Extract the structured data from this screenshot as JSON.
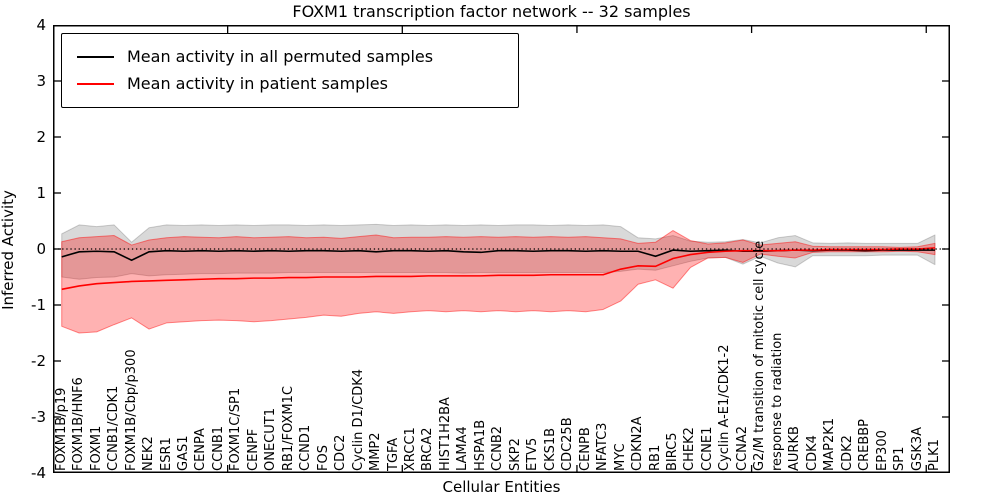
{
  "chart_data": {
    "type": "line",
    "title": "FOXM1 transcription factor network -- 32 samples",
    "xlabel": "Cellular Entities",
    "ylabel": "Inferred Activity",
    "ylim": [
      -4,
      4
    ],
    "yticks": [
      4,
      3,
      2,
      1,
      0,
      -1,
      -2,
      -3,
      -4
    ],
    "xticks": [
      10,
      20,
      30,
      40,
      50
    ],
    "grid": false,
    "zero_line_style": "dotted",
    "legend_position": "upper-left",
    "legend": [
      {
        "label": "Mean activity in all permuted samples",
        "color": "#000000"
      },
      {
        "label": "Mean activity in patient samples",
        "color": "#ff0000"
      }
    ],
    "categories": [
      "FOXM1B/p19",
      "FOXM1B/HNF6",
      "FOXM1",
      "CCNB1/CDK1",
      "FOXM1B/Cbp/p300",
      "NEK2",
      "ESR1",
      "GAS1",
      "CENPA",
      "CCNB1",
      "FOXM1C/SP1",
      "CENPF",
      "ONECUT1",
      "RB1/FOXM1C",
      "CCND1",
      "FOS",
      "CDC2",
      "Cyclin D1/CDK4",
      "MMP2",
      "TGFA",
      "XRCC1",
      "BRCA2",
      "HIST1H2BA",
      "LAMA4",
      "HSPA1B",
      "CCNB2",
      "SKP2",
      "ETV5",
      "CKS1B",
      "CDC25B",
      "CENPB",
      "NFATC3",
      "MYC",
      "CDKN2A",
      "RB1",
      "BIRC5",
      "CHEK2",
      "CCNE1",
      "Cyclin A-E1/CDK1-2",
      "CCNA2",
      "G2/M transition of mitotic cell cycle",
      "response to radiation",
      "AURKB",
      "CDK4",
      "MAP2K1",
      "CDK2",
      "CREBBP",
      "EP300",
      "SP1",
      "GSK3A",
      "PLK1"
    ],
    "series": [
      {
        "name_id": "permuted-mean",
        "name": "Mean activity in all permuted samples",
        "color": "#000000",
        "values": [
          -0.14,
          -0.05,
          -0.04,
          -0.05,
          -0.2,
          -0.05,
          -0.03,
          -0.04,
          -0.03,
          -0.04,
          -0.03,
          -0.04,
          -0.03,
          -0.04,
          -0.03,
          -0.03,
          -0.04,
          -0.03,
          -0.05,
          -0.03,
          -0.03,
          -0.04,
          -0.03,
          -0.05,
          -0.06,
          -0.03,
          -0.03,
          -0.04,
          -0.03,
          -0.03,
          -0.04,
          -0.03,
          -0.04,
          -0.04,
          -0.13,
          -0.02,
          -0.04,
          -0.03,
          -0.02,
          -0.04,
          -0.04,
          -0.03,
          -0.02,
          -0.03,
          -0.02,
          -0.02,
          -0.03,
          -0.02,
          -0.02,
          -0.02,
          -0.02
        ]
      },
      {
        "name_id": "patient-mean",
        "name": "Mean activity in patient samples",
        "color": "#ff0000",
        "values": [
          -0.72,
          -0.66,
          -0.62,
          -0.6,
          -0.58,
          -0.57,
          -0.56,
          -0.55,
          -0.54,
          -0.53,
          -0.53,
          -0.52,
          -0.52,
          -0.51,
          -0.51,
          -0.5,
          -0.5,
          -0.5,
          -0.49,
          -0.49,
          -0.49,
          -0.48,
          -0.48,
          -0.48,
          -0.48,
          -0.47,
          -0.47,
          -0.47,
          -0.46,
          -0.46,
          -0.46,
          -0.46,
          -0.36,
          -0.3,
          -0.31,
          -0.17,
          -0.1,
          -0.06,
          -0.04,
          -0.03,
          -0.03,
          -0.03,
          -0.02,
          -0.02,
          -0.01,
          -0.01,
          -0.01,
          -0.01,
          0.0,
          0.0,
          0.02
        ]
      }
    ],
    "bands": [
      {
        "name_id": "permuted-range",
        "fill": "rgba(0,0,0,0.15)",
        "edge": "rgba(0,0,0,0.18)",
        "upper": [
          0.27,
          0.43,
          0.4,
          0.43,
          0.12,
          0.38,
          0.43,
          0.42,
          0.43,
          0.42,
          0.43,
          0.42,
          0.43,
          0.43,
          0.42,
          0.43,
          0.42,
          0.43,
          0.44,
          0.42,
          0.43,
          0.42,
          0.43,
          0.42,
          0.43,
          0.42,
          0.43,
          0.43,
          0.42,
          0.43,
          0.42,
          0.43,
          0.4,
          0.2,
          0.18,
          0.24,
          0.14,
          0.12,
          0.13,
          0.17,
          0.11,
          0.2,
          0.24,
          0.11,
          0.1,
          0.11,
          0.1,
          0.1,
          0.1,
          0.1,
          0.25
        ],
        "lower": [
          -0.5,
          -0.54,
          -0.51,
          -0.5,
          -0.44,
          -0.48,
          -0.46,
          -0.45,
          -0.44,
          -0.44,
          -0.43,
          -0.43,
          -0.43,
          -0.42,
          -0.42,
          -0.42,
          -0.42,
          -0.42,
          -0.42,
          -0.42,
          -0.42,
          -0.42,
          -0.42,
          -0.43,
          -0.42,
          -0.42,
          -0.42,
          -0.42,
          -0.42,
          -0.42,
          -0.42,
          -0.42,
          -0.4,
          -0.36,
          -0.38,
          -0.3,
          -0.22,
          -0.16,
          -0.15,
          -0.27,
          -0.13,
          -0.25,
          -0.32,
          -0.12,
          -0.12,
          -0.12,
          -0.12,
          -0.11,
          -0.11,
          -0.11,
          -0.28
        ]
      },
      {
        "name_id": "patient-range",
        "fill": "rgba(255,0,0,0.30)",
        "edge": "rgba(255,0,0,0.45)",
        "upper": [
          0.13,
          0.2,
          0.22,
          0.24,
          0.07,
          0.16,
          0.2,
          0.22,
          0.21,
          0.2,
          0.22,
          0.2,
          0.21,
          0.22,
          0.2,
          0.21,
          0.19,
          0.22,
          0.25,
          0.2,
          0.21,
          0.21,
          0.22,
          0.21,
          0.22,
          0.21,
          0.22,
          0.21,
          0.22,
          0.21,
          0.22,
          0.2,
          0.18,
          0.1,
          0.12,
          0.33,
          0.15,
          0.09,
          0.11,
          0.16,
          0.07,
          0.1,
          0.13,
          0.05,
          0.04,
          0.04,
          0.04,
          0.04,
          0.03,
          0.04,
          0.1
        ],
        "lower": [
          -1.38,
          -1.5,
          -1.48,
          -1.35,
          -1.23,
          -1.43,
          -1.32,
          -1.3,
          -1.28,
          -1.27,
          -1.28,
          -1.3,
          -1.28,
          -1.25,
          -1.22,
          -1.18,
          -1.2,
          -1.15,
          -1.12,
          -1.15,
          -1.12,
          -1.1,
          -1.12,
          -1.1,
          -1.12,
          -1.1,
          -1.12,
          -1.1,
          -1.12,
          -1.1,
          -1.12,
          -1.08,
          -0.93,
          -0.63,
          -0.55,
          -0.7,
          -0.33,
          -0.16,
          -0.15,
          -0.24,
          -0.09,
          -0.13,
          -0.16,
          -0.06,
          -0.05,
          -0.05,
          -0.05,
          -0.05,
          -0.04,
          -0.05,
          -0.1
        ]
      }
    ]
  }
}
